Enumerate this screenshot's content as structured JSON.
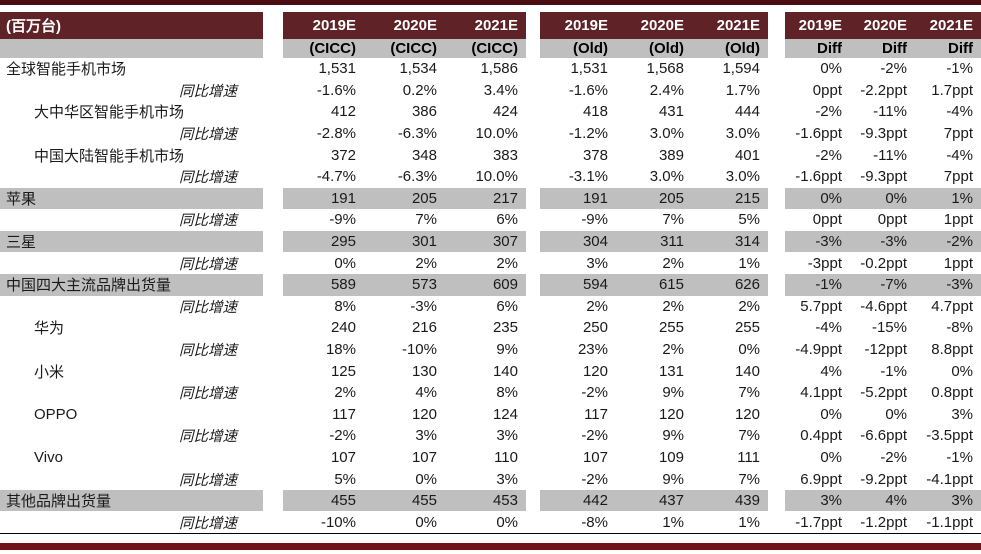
{
  "colors": {
    "maroon_header": "#5e2227",
    "band_grey": "#bfbfbf",
    "rule_top": "#4a0d11",
    "rule_bottom": "#701419",
    "text": "#1a1a1a"
  },
  "table": {
    "unit_header": "(百万台)",
    "columns": [
      {
        "group": "cicc",
        "year": "2019E",
        "sub": "(CICC)"
      },
      {
        "group": "cicc",
        "year": "2020E",
        "sub": "(CICC)"
      },
      {
        "group": "cicc",
        "year": "2021E",
        "sub": "(CICC)"
      },
      {
        "group": "old",
        "year": "2019E",
        "sub": "(Old)"
      },
      {
        "group": "old",
        "year": "2020E",
        "sub": "(Old)"
      },
      {
        "group": "old",
        "year": "2021E",
        "sub": "(Old)"
      },
      {
        "group": "diff",
        "year": "2019E",
        "sub": "Diff"
      },
      {
        "group": "diff",
        "year": "2020E",
        "sub": "Diff"
      },
      {
        "group": "diff",
        "year": "2021E",
        "sub": "Diff"
      }
    ],
    "rows": [
      {
        "label": "全球智能手机市场",
        "indent": 0,
        "growth": false,
        "shaded": false,
        "values": [
          "1,531",
          "1,534",
          "1,586",
          "1,531",
          "1,568",
          "1,594",
          "0%",
          "-2%",
          "-1%"
        ]
      },
      {
        "label": "同比增速",
        "indent": 0,
        "growth": true,
        "shaded": false,
        "values": [
          "-1.6%",
          "0.2%",
          "3.4%",
          "-1.6%",
          "2.4%",
          "1.7%",
          "0ppt",
          "-2.2ppt",
          "1.7ppt"
        ]
      },
      {
        "label": "大中华区智能手机市场",
        "indent": 1,
        "growth": false,
        "shaded": false,
        "values": [
          "412",
          "386",
          "424",
          "418",
          "431",
          "444",
          "-2%",
          "-11%",
          "-4%"
        ]
      },
      {
        "label": "同比增速",
        "indent": 0,
        "growth": true,
        "shaded": false,
        "values": [
          "-2.8%",
          "-6.3%",
          "10.0%",
          "-1.2%",
          "3.0%",
          "3.0%",
          "-1.6ppt",
          "-9.3ppt",
          "7ppt"
        ]
      },
      {
        "label": "中国大陆智能手机市场",
        "indent": 1,
        "growth": false,
        "shaded": false,
        "values": [
          "372",
          "348",
          "383",
          "378",
          "389",
          "401",
          "-2%",
          "-11%",
          "-4%"
        ]
      },
      {
        "label": "同比增速",
        "indent": 0,
        "growth": true,
        "shaded": false,
        "values": [
          "-4.7%",
          "-6.3%",
          "10.0%",
          "-3.1%",
          "3.0%",
          "3.0%",
          "-1.6ppt",
          "-9.3ppt",
          "7ppt"
        ]
      },
      {
        "label": "苹果",
        "indent": 0,
        "growth": false,
        "shaded": true,
        "values": [
          "191",
          "205",
          "217",
          "191",
          "205",
          "215",
          "0%",
          "0%",
          "1%"
        ]
      },
      {
        "label": "同比增速",
        "indent": 0,
        "growth": true,
        "shaded": false,
        "values": [
          "-9%",
          "7%",
          "6%",
          "-9%",
          "7%",
          "5%",
          "0ppt",
          "0ppt",
          "1ppt"
        ]
      },
      {
        "label": "三星",
        "indent": 0,
        "growth": false,
        "shaded": true,
        "values": [
          "295",
          "301",
          "307",
          "304",
          "311",
          "314",
          "-3%",
          "-3%",
          "-2%"
        ]
      },
      {
        "label": "同比增速",
        "indent": 0,
        "growth": true,
        "shaded": false,
        "values": [
          "0%",
          "2%",
          "2%",
          "3%",
          "2%",
          "1%",
          "-3ppt",
          "-0.2ppt",
          "1ppt"
        ]
      },
      {
        "label": "中国四大主流品牌出货量",
        "indent": 0,
        "growth": false,
        "shaded": true,
        "values": [
          "589",
          "573",
          "609",
          "594",
          "615",
          "626",
          "-1%",
          "-7%",
          "-3%"
        ]
      },
      {
        "label": "同比增速",
        "indent": 0,
        "growth": true,
        "shaded": false,
        "values": [
          "8%",
          "-3%",
          "6%",
          "2%",
          "2%",
          "2%",
          "5.7ppt",
          "-4.6ppt",
          "4.7ppt"
        ]
      },
      {
        "label": "华为",
        "indent": 1,
        "growth": false,
        "shaded": false,
        "values": [
          "240",
          "216",
          "235",
          "250",
          "255",
          "255",
          "-4%",
          "-15%",
          "-8%"
        ]
      },
      {
        "label": "同比增速",
        "indent": 0,
        "growth": true,
        "shaded": false,
        "values": [
          "18%",
          "-10%",
          "9%",
          "23%",
          "2%",
          "0%",
          "-4.9ppt",
          "-12ppt",
          "8.8ppt"
        ]
      },
      {
        "label": "小米",
        "indent": 1,
        "growth": false,
        "shaded": false,
        "values": [
          "125",
          "130",
          "140",
          "120",
          "131",
          "140",
          "4%",
          "-1%",
          "0%"
        ]
      },
      {
        "label": "同比增速",
        "indent": 0,
        "growth": true,
        "shaded": false,
        "values": [
          "2%",
          "4%",
          "8%",
          "-2%",
          "9%",
          "7%",
          "4.1ppt",
          "-5.2ppt",
          "0.8ppt"
        ]
      },
      {
        "label": "OPPO",
        "indent": 1,
        "growth": false,
        "shaded": false,
        "values": [
          "117",
          "120",
          "124",
          "117",
          "120",
          "120",
          "0%",
          "0%",
          "3%"
        ]
      },
      {
        "label": "同比增速",
        "indent": 0,
        "growth": true,
        "shaded": false,
        "values": [
          "-2%",
          "3%",
          "3%",
          "-2%",
          "9%",
          "7%",
          "0.4ppt",
          "-6.6ppt",
          "-3.5ppt"
        ]
      },
      {
        "label": "Vivo",
        "indent": 1,
        "growth": false,
        "shaded": false,
        "values": [
          "107",
          "107",
          "110",
          "107",
          "109",
          "111",
          "0%",
          "-2%",
          "-1%"
        ]
      },
      {
        "label": "同比增速",
        "indent": 0,
        "growth": true,
        "shaded": false,
        "values": [
          "5%",
          "0%",
          "3%",
          "-2%",
          "9%",
          "7%",
          "6.9ppt",
          "-9.2ppt",
          "-4.1ppt"
        ]
      },
      {
        "label": "其他品牌出货量",
        "indent": 0,
        "growth": false,
        "shaded": true,
        "values": [
          "455",
          "455",
          "453",
          "442",
          "437",
          "439",
          "3%",
          "4%",
          "3%"
        ]
      },
      {
        "label": "同比增速",
        "indent": 0,
        "growth": true,
        "shaded": false,
        "values": [
          "-10%",
          "0%",
          "0%",
          "-8%",
          "1%",
          "1%",
          "-1.7ppt",
          "-1.2ppt",
          "-1.1ppt"
        ]
      }
    ]
  }
}
